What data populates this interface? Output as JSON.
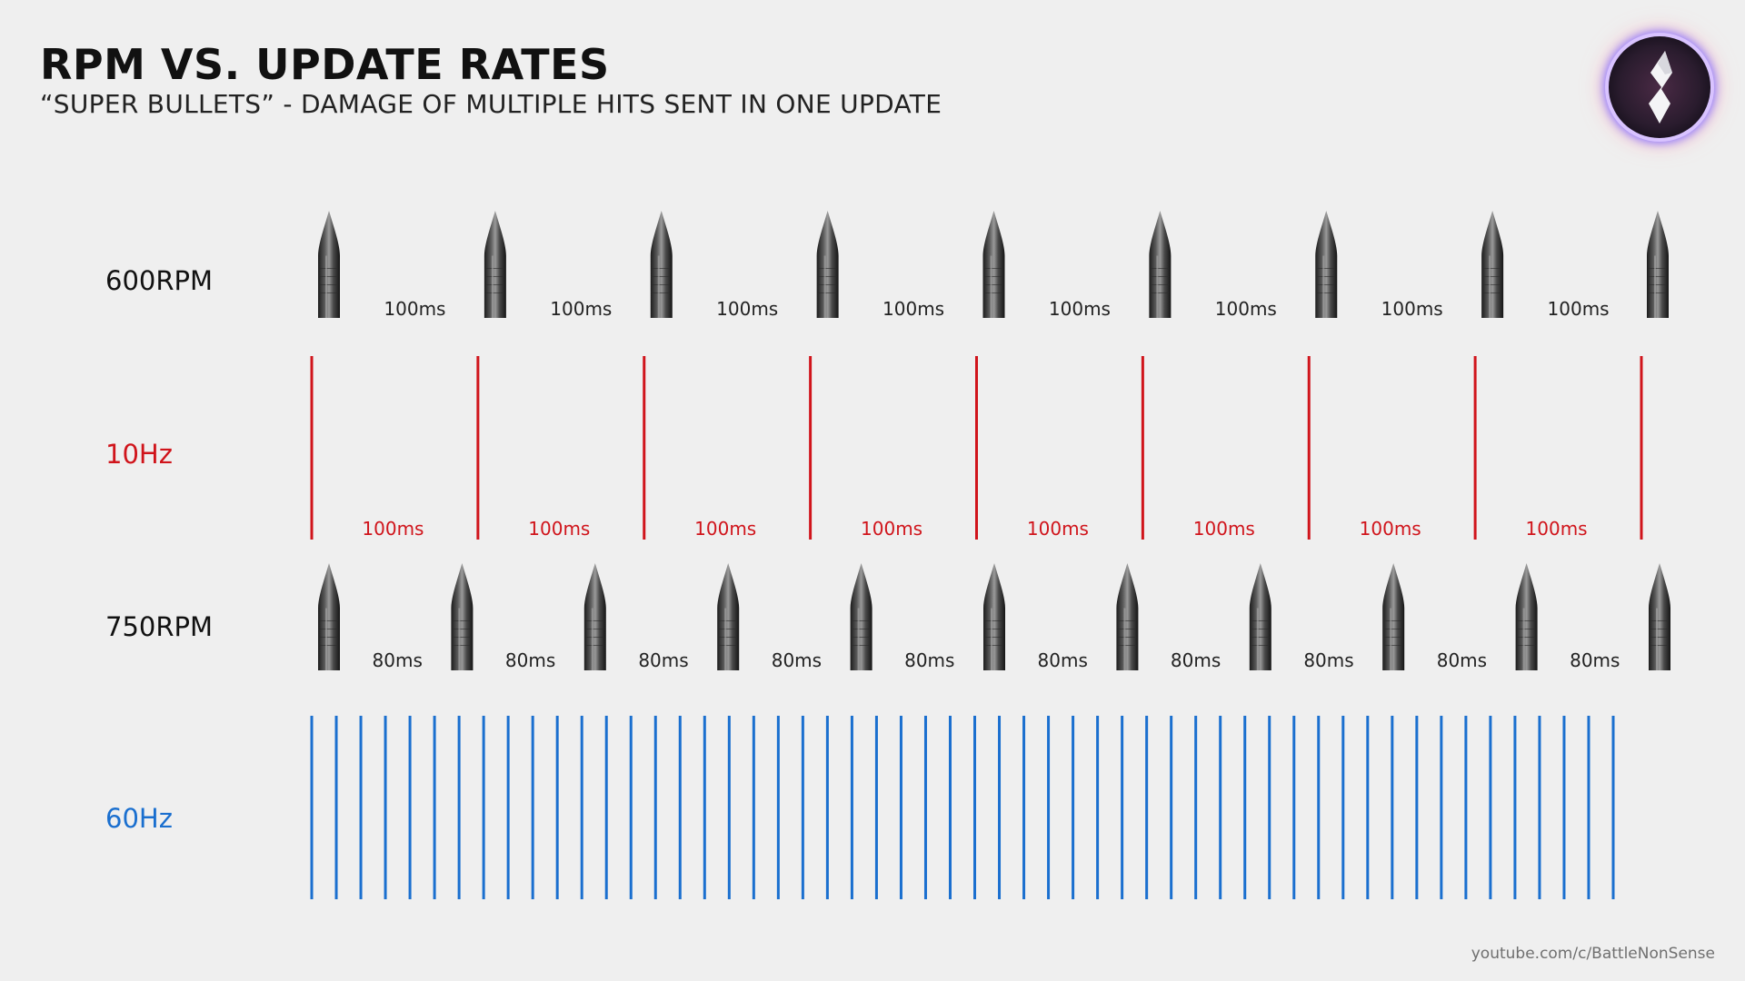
{
  "header": {
    "title": "RPM VS. UPDATE RATES",
    "subtitle": "“SUPER BULLETS” - DAMAGE OF MULTIPLE HITS SENT IN ONE UPDATE"
  },
  "rows": {
    "rpm600": {
      "label": "600RPM",
      "interval_label": "100ms",
      "interval_ms": 100,
      "bullet_count": 9
    },
    "hz10": {
      "label": "10Hz",
      "interval_label": "100ms",
      "interval_ms": 100,
      "tick_count": 9
    },
    "rpm750": {
      "label": "750RPM",
      "interval_label": "80ms",
      "interval_ms": 80,
      "bullet_count": 11
    },
    "hz60": {
      "label": "60Hz",
      "tick_count": 54
    }
  },
  "colors": {
    "red": "#d0141b",
    "blue": "#1a6fcf",
    "text": "#111111"
  },
  "icons": {
    "logo": "s-logo-icon",
    "bullet": "bullet-icon"
  },
  "footer": {
    "url": "youtube.com/c/BattleNonSense"
  }
}
